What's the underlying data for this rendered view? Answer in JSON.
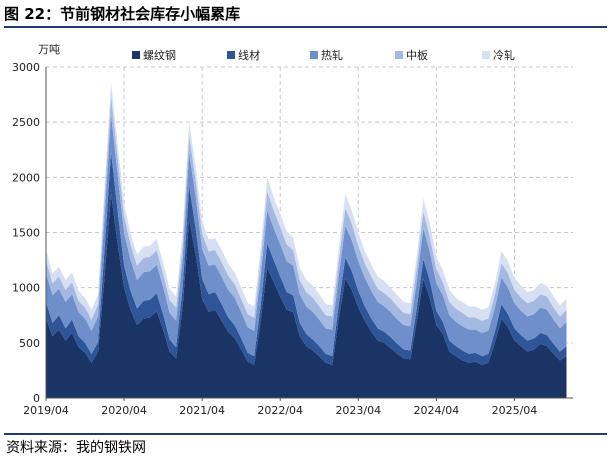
{
  "figure": {
    "title": "图 22：节前钢材社会库存小幅累库",
    "source": "资料来源：我的钢铁网"
  },
  "chart_data": {
    "type": "area",
    "stacked": true,
    "ylabel": "万吨",
    "ylim": [
      0,
      3000
    ],
    "yticks": [
      0,
      500,
      1000,
      1500,
      2000,
      2500,
      3000
    ],
    "xlim": [
      "2019-04",
      "2026-01"
    ],
    "xticks": [
      "2019/04",
      "2020/04",
      "2021/04",
      "2022/04",
      "2023/04",
      "2024/04",
      "2025/04"
    ],
    "grid": true,
    "legend_position": "top",
    "x": [
      "2019-04",
      "2019-05",
      "2019-06",
      "2019-07",
      "2019-08",
      "2019-09",
      "2019-10",
      "2019-11",
      "2019-12",
      "2020-01",
      "2020-02",
      "2020-03",
      "2020-04",
      "2020-05",
      "2020-06",
      "2020-07",
      "2020-08",
      "2020-09",
      "2020-10",
      "2020-11",
      "2020-12",
      "2021-01",
      "2021-02",
      "2021-03",
      "2021-04",
      "2021-05",
      "2021-06",
      "2021-07",
      "2021-08",
      "2021-09",
      "2021-10",
      "2021-11",
      "2021-12",
      "2022-01",
      "2022-02",
      "2022-03",
      "2022-04",
      "2022-05",
      "2022-06",
      "2022-07",
      "2022-08",
      "2022-09",
      "2022-10",
      "2022-11",
      "2022-12",
      "2023-01",
      "2023-02",
      "2023-03",
      "2023-04",
      "2023-05",
      "2023-06",
      "2023-07",
      "2023-08",
      "2023-09",
      "2023-10",
      "2023-11",
      "2023-12",
      "2024-01",
      "2024-02",
      "2024-03",
      "2024-04",
      "2024-05",
      "2024-06",
      "2024-07",
      "2024-08",
      "2024-09",
      "2024-10",
      "2024-11",
      "2024-12",
      "2025-01",
      "2025-02",
      "2025-03",
      "2025-04",
      "2025-05",
      "2025-06",
      "2025-07",
      "2025-08",
      "2025-09",
      "2025-10",
      "2025-11",
      "2025-12"
    ],
    "series": [
      {
        "name": "螺纹钢",
        "color": "#1b3466",
        "values": [
          720,
          560,
          620,
          520,
          590,
          460,
          410,
          320,
          420,
          1100,
          1850,
          1400,
          1000,
          800,
          660,
          720,
          730,
          790,
          620,
          420,
          360,
          820,
          1620,
          1300,
          900,
          780,
          800,
          700,
          600,
          540,
          440,
          330,
          300,
          700,
          1180,
          1050,
          920,
          800,
          780,
          560,
          470,
          430,
          380,
          320,
          300,
          720,
          1080,
          980,
          820,
          700,
          600,
          520,
          500,
          450,
          400,
          360,
          350,
          700,
          1080,
          900,
          660,
          580,
          420,
          380,
          340,
          320,
          330,
          300,
          320,
          500,
          720,
          640,
          520,
          470,
          420,
          440,
          490,
          470,
          400,
          340,
          380
        ]
      },
      {
        "name": "线材",
        "color": "#2e5597",
        "values": [
          150,
          120,
          130,
          110,
          120,
          100,
          90,
          80,
          90,
          250,
          380,
          300,
          200,
          170,
          150,
          160,
          160,
          160,
          140,
          110,
          100,
          180,
          300,
          240,
          180,
          160,
          160,
          150,
          130,
          120,
          100,
          80,
          80,
          140,
          220,
          200,
          180,
          160,
          150,
          120,
          110,
          100,
          90,
          80,
          80,
          130,
          190,
          170,
          150,
          130,
          120,
          110,
          100,
          100,
          90,
          80,
          80,
          120,
          180,
          160,
          130,
          110,
          100,
          90,
          90,
          80,
          80,
          80,
          80,
          100,
          130,
          120,
          110,
          100,
          100,
          100,
          100,
          100,
          90,
          80,
          90
        ]
      },
      {
        "name": "热轧",
        "color": "#6f8fcb",
        "values": [
          260,
          250,
          240,
          240,
          230,
          220,
          220,
          210,
          230,
          300,
          340,
          330,
          300,
          280,
          260,
          260,
          260,
          260,
          250,
          240,
          240,
          260,
          300,
          290,
          270,
          260,
          250,
          250,
          250,
          250,
          240,
          230,
          230,
          270,
          300,
          290,
          290,
          280,
          270,
          260,
          250,
          250,
          240,
          230,
          240,
          260,
          290,
          280,
          270,
          260,
          250,
          240,
          230,
          230,
          220,
          220,
          220,
          240,
          280,
          260,
          250,
          240,
          230,
          220,
          220,
          220,
          210,
          210,
          210,
          220,
          240,
          240,
          230,
          220,
          220,
          220,
          230,
          230,
          220,
          210,
          220
        ]
      },
      {
        "name": "中板",
        "color": "#a4b9e2",
        "values": [
          120,
          110,
          110,
          110,
          110,
          100,
          100,
          100,
          110,
          150,
          170,
          160,
          150,
          140,
          130,
          130,
          130,
          130,
          120,
          120,
          120,
          130,
          160,
          150,
          140,
          130,
          130,
          130,
          130,
          120,
          120,
          120,
          120,
          140,
          170,
          160,
          160,
          150,
          140,
          130,
          130,
          130,
          120,
          120,
          120,
          130,
          160,
          150,
          140,
          130,
          130,
          120,
          120,
          120,
          120,
          110,
          110,
          130,
          150,
          140,
          130,
          120,
          120,
          120,
          120,
          110,
          110,
          110,
          110,
          120,
          130,
          130,
          120,
          120,
          120,
          120,
          120,
          120,
          110,
          110,
          110
        ]
      },
      {
        "name": "冷轧",
        "color": "#d6e0f2",
        "values": [
          90,
          90,
          90,
          90,
          90,
          90,
          90,
          90,
          90,
          110,
          120,
          120,
          110,
          100,
          100,
          100,
          100,
          100,
          100,
          100,
          100,
          110,
          120,
          120,
          110,
          110,
          110,
          110,
          110,
          110,
          100,
          100,
          100,
          110,
          130,
          120,
          120,
          120,
          110,
          110,
          110,
          110,
          110,
          100,
          100,
          110,
          130,
          120,
          120,
          110,
          110,
          110,
          110,
          100,
          100,
          100,
          100,
          110,
          120,
          120,
          110,
          110,
          110,
          100,
          100,
          100,
          100,
          100,
          100,
          100,
          110,
          110,
          110,
          110,
          100,
          100,
          100,
          100,
          100,
          100,
          100
        ]
      }
    ]
  }
}
